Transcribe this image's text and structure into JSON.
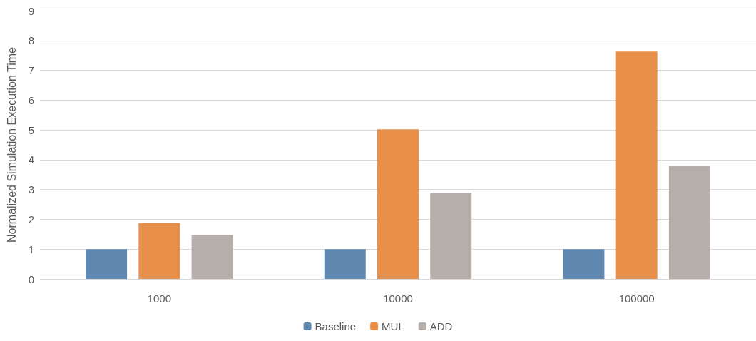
{
  "chart_data": {
    "type": "bar",
    "ylabel": "Normalized Simulation Execution Time",
    "categories": [
      "1000",
      "10000",
      "100000"
    ],
    "series": [
      {
        "name": "Baseline",
        "color": "#5f87b0",
        "values": [
          1,
          1,
          1
        ]
      },
      {
        "name": "MUL",
        "color": "#e8904a",
        "values": [
          1.88,
          5.02,
          7.63
        ]
      },
      {
        "name": "ADD",
        "color": "#b5aeab",
        "values": [
          1.48,
          2.89,
          3.8
        ]
      }
    ],
    "ylim": [
      0,
      9
    ],
    "yticks": [
      0,
      1,
      2,
      3,
      4,
      5,
      6,
      7,
      8,
      9
    ],
    "grid": "y",
    "legend": "bottom"
  }
}
